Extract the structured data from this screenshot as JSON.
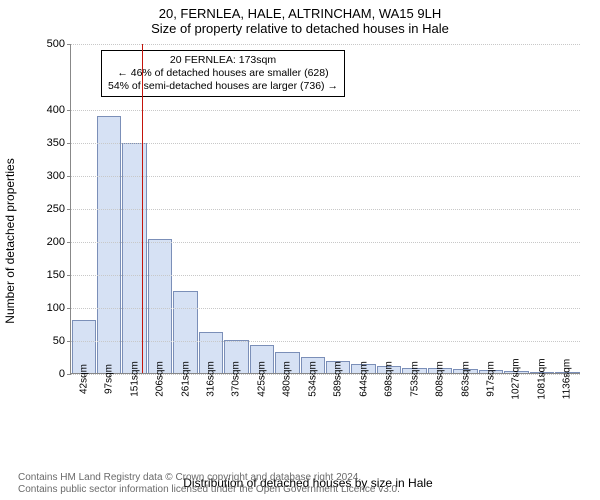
{
  "title": {
    "line1": "20, FERNLEA, HALE, ALTRINCHAM, WA15 9LH",
    "line2": "Size of property relative to detached houses in Hale"
  },
  "axes": {
    "ylabel": "Number of detached properties",
    "xlabel": "Distribution of detached houses by size in Hale",
    "ylim": [
      0,
      500
    ],
    "yticks": [
      0,
      50,
      100,
      150,
      200,
      250,
      300,
      350,
      400,
      500
    ],
    "grid_color": "#c8c8c8",
    "axis_color": "#888888",
    "font_size_ticks": 11,
    "font_size_labels": 12
  },
  "histogram": {
    "type": "histogram",
    "bar_fill": "#d6e1f4",
    "bar_stroke": "#7b8fb8",
    "bar_stroke_width": 1,
    "categories": [
      "42sqm",
      "97sqm",
      "151sqm",
      "206sqm",
      "261sqm",
      "316sqm",
      "370sqm",
      "425sqm",
      "480sqm",
      "534sqm",
      "589sqm",
      "644sqm",
      "698sqm",
      "753sqm",
      "808sqm",
      "863sqm",
      "917sqm",
      "1027sqm",
      "1081sqm",
      "1136sqm"
    ],
    "values": [
      80,
      390,
      350,
      203,
      125,
      62,
      50,
      42,
      32,
      25,
      18,
      14,
      10,
      8,
      7,
      6,
      4,
      3,
      2,
      2
    ]
  },
  "reference": {
    "value_sqm": 173,
    "line_color": "#c4140b",
    "line_width": 1,
    "callout": {
      "line1": "20 FERNLEA: 173sqm",
      "line2": "← 46% of detached houses are smaller (628)",
      "line3": "54% of semi-detached houses are larger (736) →"
    }
  },
  "credit": {
    "line1": "Contains HM Land Registry data © Crown copyright and database right 2024.",
    "line2": "Contains public sector information licensed under the Open Government Licence v3.0."
  },
  "colors": {
    "background": "#ffffff",
    "text": "#000000",
    "credit_text": "#6a6a6a"
  },
  "title_fontsize": 13
}
